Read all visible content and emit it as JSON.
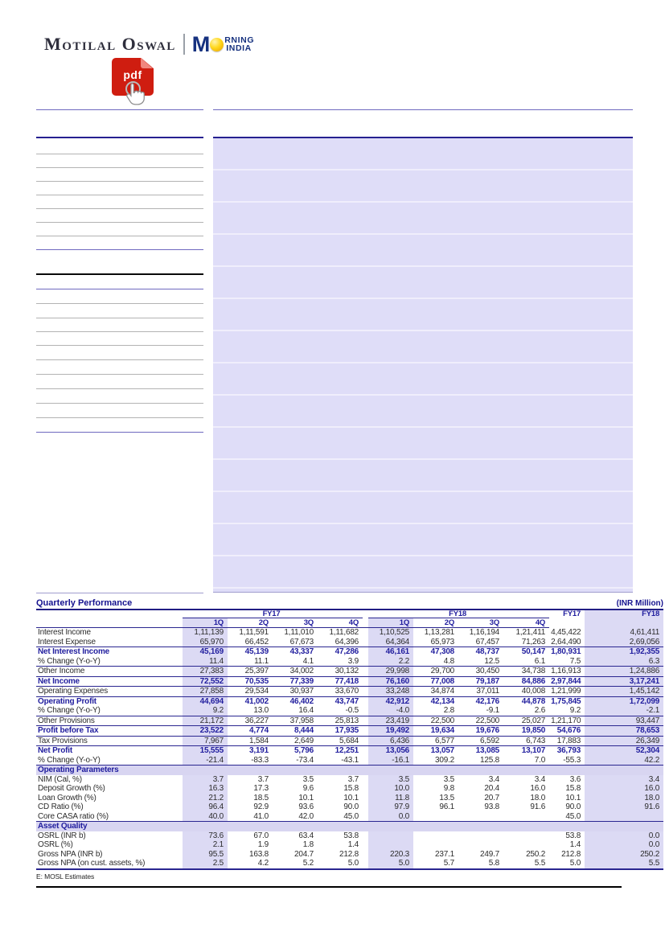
{
  "brand": {
    "name": "Motilal Oswal",
    "morning_m": "M",
    "morning_top": "RNING",
    "morning_bottom": "INDIA",
    "pdf_label": "pdf"
  },
  "colors": {
    "accent_navy": "#201d9e",
    "lavender_shade": "#dcdaf4",
    "section_lavender": "#d8d5f1",
    "pdf_red": "#cf1d10",
    "logo_blue": "#16317f",
    "sun_yellow": "#ffd81e"
  },
  "quarterly": {
    "title": "Quarterly Performance",
    "unit": "(INR Million)",
    "fy_groups": [
      "FY17",
      "FY18"
    ],
    "quarters": [
      "1Q",
      "2Q",
      "3Q",
      "4Q",
      "1Q",
      "2Q",
      "3Q",
      "4Q"
    ],
    "annual_cols": [
      "FY17",
      "FY18"
    ],
    "footnote": "E: MOSL Estimates",
    "rows": [
      {
        "label": "Interest Income",
        "style": "normal",
        "values": [
          "1,11,139",
          "1,11,591",
          "1,11,010",
          "1,11,682",
          "1,10,525",
          "1,13,281",
          "1,16,194",
          "1,21,411",
          "4,45,422",
          "4,61,411"
        ]
      },
      {
        "label": "Interest Expense",
        "style": "normal",
        "values": [
          "65,970",
          "66,452",
          "67,673",
          "64,396",
          "64,364",
          "65,973",
          "67,457",
          "71,263",
          "2,64,490",
          "2,69,056"
        ]
      },
      {
        "label": "Net Interest Income",
        "style": "bold",
        "values": [
          "45,169",
          "45,139",
          "43,337",
          "47,286",
          "46,161",
          "47,308",
          "48,737",
          "50,147",
          "1,80,931",
          "1,92,355"
        ]
      },
      {
        "label": "% Change (Y-o-Y)",
        "style": "pct",
        "values": [
          "11.4",
          "11.1",
          "4.1",
          "3.9",
          "2.2",
          "4.8",
          "12.5",
          "6.1",
          "7.5",
          "6.3"
        ]
      },
      {
        "label": "Other Income",
        "style": "normal",
        "values": [
          "27,383",
          "25,397",
          "34,002",
          "30,132",
          "29,998",
          "29,700",
          "30,450",
          "34,738",
          "1,16,913",
          "1,24,886"
        ]
      },
      {
        "label": "Net Income",
        "style": "bold",
        "values": [
          "72,552",
          "70,535",
          "77,339",
          "77,418",
          "76,160",
          "77,008",
          "79,187",
          "84,886",
          "2,97,844",
          "3,17,241"
        ]
      },
      {
        "label": "Operating Expenses",
        "style": "normal",
        "values": [
          "27,858",
          "29,534",
          "30,937",
          "33,670",
          "33,248",
          "34,874",
          "37,011",
          "40,008",
          "1,21,999",
          "1,45,142"
        ]
      },
      {
        "label": "Operating Profit",
        "style": "bold",
        "values": [
          "44,694",
          "41,002",
          "46,402",
          "43,747",
          "42,912",
          "42,134",
          "42,176",
          "44,878",
          "1,75,845",
          "1,72,099"
        ]
      },
      {
        "label": "% Change (Y-o-Y)",
        "style": "pct",
        "values": [
          "9.2",
          "13.0",
          "16.4",
          "-0.5",
          "-4.0",
          "2.8",
          "-9.1",
          "2.6",
          "9.2",
          "-2.1"
        ]
      },
      {
        "label": "Other Provisions",
        "style": "normal",
        "values": [
          "21,172",
          "36,227",
          "37,958",
          "25,813",
          "23,419",
          "22,500",
          "22,500",
          "25,027",
          "1,21,170",
          "93,447"
        ]
      },
      {
        "label": "Profit before Tax",
        "style": "bold",
        "values": [
          "23,522",
          "4,774",
          "8,444",
          "17,935",
          "19,492",
          "19,634",
          "19,676",
          "19,850",
          "54,676",
          "78,653"
        ]
      },
      {
        "label": "Tax Provisions",
        "style": "normal",
        "values": [
          "7,967",
          "1,584",
          "2,649",
          "5,684",
          "6,436",
          "6,577",
          "6,592",
          "6,743",
          "17,883",
          "26,349"
        ]
      },
      {
        "label": "Net Profit",
        "style": "bold",
        "values": [
          "15,555",
          "3,191",
          "5,796",
          "12,251",
          "13,056",
          "13,057",
          "13,085",
          "13,107",
          "36,793",
          "52,304"
        ]
      },
      {
        "label": "% Change (Y-o-Y)",
        "style": "pct",
        "values": [
          "-21.4",
          "-83.3",
          "-73.4",
          "-43.1",
          "-16.1",
          "309.2",
          "125.8",
          "7.0",
          "-55.3",
          "42.2"
        ]
      },
      {
        "label": "Operating Parameters",
        "style": "section",
        "values": []
      },
      {
        "label": "NIM (Cal, %)",
        "style": "normal",
        "values": [
          "3.7",
          "3.7",
          "3.5",
          "3.7",
          "3.5",
          "3.5",
          "3.4",
          "3.4",
          "3.6",
          "3.4"
        ]
      },
      {
        "label": "Deposit Growth (%)",
        "style": "normal",
        "values": [
          "16.3",
          "17.3",
          "9.6",
          "15.8",
          "10.0",
          "9.8",
          "20.4",
          "16.0",
          "15.8",
          "16.0"
        ]
      },
      {
        "label": "Loan Growth (%)",
        "style": "normal",
        "values": [
          "21.2",
          "18.5",
          "10.1",
          "10.1",
          "11.8",
          "13.5",
          "20.7",
          "18.0",
          "10.1",
          "18.0"
        ]
      },
      {
        "label": "CD Ratio (%)",
        "style": "normal",
        "values": [
          "96.4",
          "92.9",
          "93.6",
          "90.0",
          "97.9",
          "96.1",
          "93.8",
          "91.6",
          "90.0",
          "91.6"
        ]
      },
      {
        "label": "Core CASA ratio (%)",
        "style": "normal",
        "values": [
          "40.0",
          "41.0",
          "42.0",
          "45.0",
          "0.0",
          "",
          "",
          "",
          "45.0",
          ""
        ]
      },
      {
        "label": "Asset Quality",
        "style": "section",
        "values": []
      },
      {
        "label": "OSRL (INR b)",
        "style": "normal",
        "values": [
          "73.6",
          "67.0",
          "63.4",
          "53.8",
          "",
          "",
          "",
          "",
          "53.8",
          "0.0"
        ]
      },
      {
        "label": "OSRL (%)",
        "style": "normal",
        "values": [
          "2.1",
          "1.9",
          "1.8",
          "1.4",
          "",
          "",
          "",
          "",
          "1.4",
          "0.0"
        ]
      },
      {
        "label": "Gross NPA (INR b)",
        "style": "normal",
        "values": [
          "95.5",
          "163.8",
          "204.7",
          "212.8",
          "220.3",
          "237.1",
          "249.7",
          "250.2",
          "212.8",
          "250.2"
        ]
      },
      {
        "label": "Gross NPA (on cust. assets, %)",
        "style": "normal",
        "values": [
          "2.5",
          "4.2",
          "5.2",
          "5.0",
          "5.0",
          "5.7",
          "5.8",
          "5.5",
          "5.0",
          "5.5"
        ]
      }
    ]
  }
}
